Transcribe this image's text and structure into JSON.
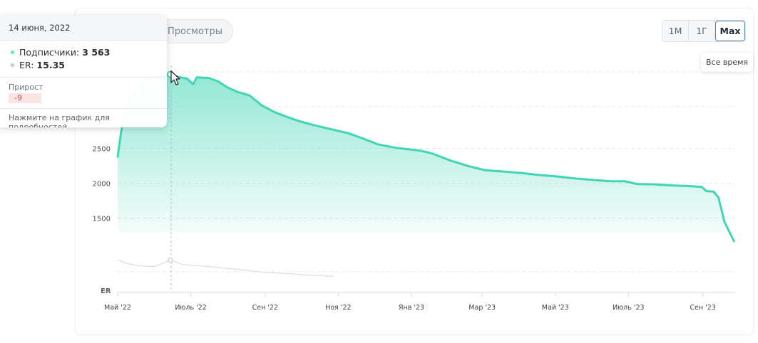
{
  "tabs": {
    "views_label": "Просмотры"
  },
  "range": {
    "buttons": [
      "1M",
      "1Г",
      "Max"
    ],
    "active": "Max",
    "tooltip": "Все время"
  },
  "tooltip": {
    "date": "14 июня, 2022",
    "subscribers_label": "Подписчики:",
    "subscribers_value": "3 563",
    "er_label": "ER:",
    "er_value": "15.35",
    "gain_label": "Прирост",
    "gain_value": "-9",
    "hint": "Нажмите на график для подробностей"
  },
  "colors": {
    "series": "#3fd6b6",
    "er_series": "#d9dcdf",
    "gain_negative": "#d23c3c",
    "active_border": "#4d7ea8"
  },
  "chart_data": {
    "type": "area",
    "y_ticks": [
      "1500",
      "2000",
      "2500"
    ],
    "ylim": [
      1150,
      3700
    ],
    "x_ticks": [
      "Май '22",
      "Июль '22",
      "Сен '22",
      "Ноя '22",
      "Янв '23",
      "Мар '23",
      "Май '23",
      "Июль '23",
      "Сен '23"
    ],
    "er_label": "ER",
    "grid": true,
    "series": [
      {
        "name": "Подписчики",
        "points": [
          [
            "2022-05-01",
            2380
          ],
          [
            "2022-05-04",
            2750
          ],
          [
            "2022-05-08",
            3050
          ],
          [
            "2022-05-14",
            3280
          ],
          [
            "2022-05-24",
            3450
          ],
          [
            "2022-06-03",
            3530
          ],
          [
            "2022-06-14",
            3563
          ],
          [
            "2022-06-20",
            3530
          ],
          [
            "2022-06-28",
            3500
          ],
          [
            "2022-07-03",
            3420
          ],
          [
            "2022-07-06",
            3520
          ],
          [
            "2022-07-16",
            3510
          ],
          [
            "2022-07-24",
            3460
          ],
          [
            "2022-07-31",
            3380
          ],
          [
            "2022-08-09",
            3310
          ],
          [
            "2022-08-19",
            3260
          ],
          [
            "2022-08-29",
            3120
          ],
          [
            "2022-09-09",
            3020
          ],
          [
            "2022-09-18",
            2960
          ],
          [
            "2022-09-28",
            2900
          ],
          [
            "2022-10-08",
            2850
          ],
          [
            "2022-10-20",
            2800
          ],
          [
            "2022-10-30",
            2760
          ],
          [
            "2022-11-09",
            2720
          ],
          [
            "2022-11-19",
            2660
          ],
          [
            "2022-12-04",
            2560
          ],
          [
            "2022-12-19",
            2510
          ],
          [
            "2023-01-08",
            2470
          ],
          [
            "2023-01-18",
            2430
          ],
          [
            "2023-02-02",
            2330
          ],
          [
            "2023-02-17",
            2250
          ],
          [
            "2023-03-03",
            2190
          ],
          [
            "2023-03-18",
            2170
          ],
          [
            "2023-04-02",
            2150
          ],
          [
            "2023-04-17",
            2120
          ],
          [
            "2023-05-02",
            2100
          ],
          [
            "2023-05-17",
            2070
          ],
          [
            "2023-06-01",
            2050
          ],
          [
            "2023-06-16",
            2030
          ],
          [
            "2023-06-28",
            2030
          ],
          [
            "2023-07-08",
            1990
          ],
          [
            "2023-07-23",
            1985
          ],
          [
            "2023-08-07",
            1970
          ],
          [
            "2023-08-22",
            1960
          ],
          [
            "2023-08-31",
            1950
          ],
          [
            "2023-09-04",
            1890
          ],
          [
            "2023-09-10",
            1880
          ],
          [
            "2023-09-14",
            1800
          ],
          [
            "2023-09-19",
            1450
          ],
          [
            "2023-09-27",
            1170
          ]
        ]
      },
      {
        "name": "ER",
        "points": [
          [
            "2022-05-01",
            15.5
          ],
          [
            "2022-05-08",
            13.8
          ],
          [
            "2022-05-18",
            12.6
          ],
          [
            "2022-06-01",
            12.3
          ],
          [
            "2022-06-14",
            15.35
          ],
          [
            "2022-06-24",
            13.2
          ],
          [
            "2022-07-14",
            12.4
          ],
          [
            "2022-08-11",
            10.8
          ],
          [
            "2022-08-31",
            9.6
          ],
          [
            "2022-09-18",
            9.0
          ],
          [
            "2022-10-08",
            8.2
          ],
          [
            "2022-10-28",
            7.6
          ]
        ]
      }
    ]
  }
}
